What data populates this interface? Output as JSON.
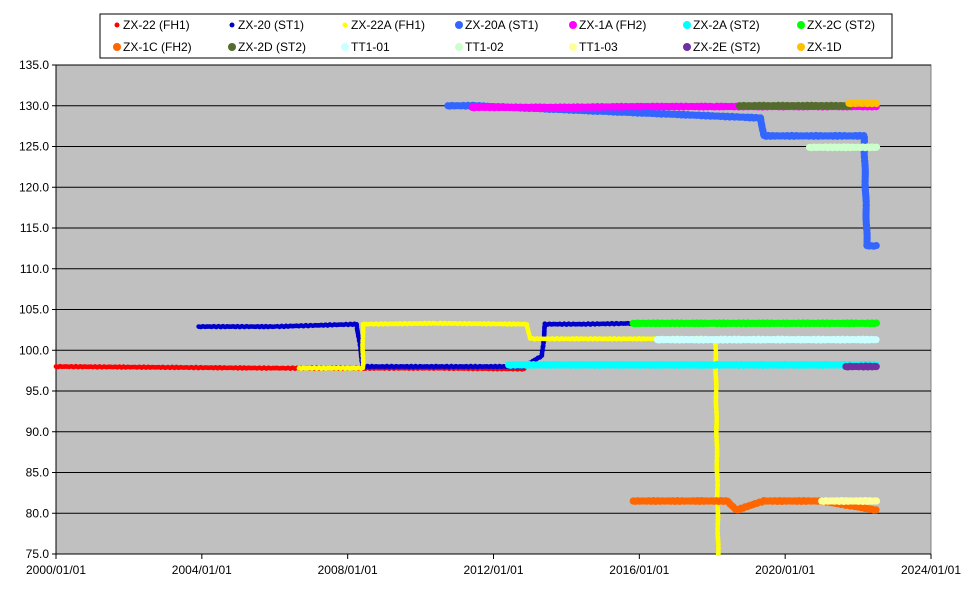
{
  "chart_data": {
    "type": "scatter",
    "title": "",
    "xlabel": "",
    "ylabel": "",
    "xlim": [
      "2000/01/01",
      "2024/01/01"
    ],
    "ylim": [
      75.0,
      135.0
    ],
    "x_ticks": [
      "2000/01/01",
      "2004/01/01",
      "2008/01/01",
      "2012/01/01",
      "2016/01/01",
      "2020/01/01",
      "2024/01/01"
    ],
    "y_ticks": [
      "75.0",
      "80.0",
      "85.0",
      "90.0",
      "95.0",
      "100.0",
      "105.0",
      "110.0",
      "115.0",
      "120.0",
      "125.0",
      "130.0",
      "135.0"
    ],
    "grid": "horizontal",
    "plot_background": "#C0C0C0",
    "legend_position": "top",
    "series": [
      {
        "name": "ZX-22 (FH1)",
        "color": "#FF0000",
        "marker": "small",
        "x": [
          "2000/01/01",
          "2003/01/01",
          "2006/01/01",
          "2008/06/01",
          "2010/06/01",
          "2012/11/01"
        ],
        "y": [
          98.0,
          97.9,
          97.8,
          97.8,
          97.8,
          97.7
        ]
      },
      {
        "name": "ZX-20 (ST1)",
        "color": "#0000CC",
        "marker": "small",
        "x": [
          "2003/12/01",
          "2006/01/01",
          "2008/04/01",
          "2008/06/01",
          "2010/06/01",
          "2012/11/01",
          "2013/05/01",
          "2013/06/01",
          "2014/06/01",
          "2015/12/01"
        ],
        "y": [
          102.9,
          102.9,
          103.2,
          98.0,
          98.0,
          98.0,
          99.3,
          103.2,
          103.2,
          103.3
        ]
      },
      {
        "name": "ZX-22A (FH1)",
        "color": "#FFFF00",
        "marker": "small",
        "x": [
          "2006/09/01",
          "2008/06/01",
          "2008/06/01",
          "2010/06/01",
          "2012/12/01",
          "2013/01/01",
          "2014/06/01",
          "2016/06/01",
          "2018/02/01",
          "2018/03/01"
        ],
        "y": [
          97.8,
          97.8,
          103.2,
          103.3,
          103.2,
          101.4,
          101.4,
          101.4,
          101.4,
          75.0
        ]
      },
      {
        "name": "ZX-20A (ST1)",
        "color": "#3366FF",
        "marker": "large",
        "x": [
          "2010/10/01",
          "2011/06/01",
          "2019/05/01",
          "2019/06/01",
          "2020/06/01",
          "2022/03/01",
          "2022/04/01",
          "2022/07/01"
        ],
        "y": [
          130.0,
          130.0,
          128.5,
          126.3,
          126.3,
          126.3,
          112.8,
          112.8
        ]
      },
      {
        "name": "ZX-1A (FH2)",
        "color": "#FF00FF",
        "marker": "large",
        "x": [
          "2011/06/01",
          "2014/01/01",
          "2016/01/01",
          "2018/01/01",
          "2020/01/01",
          "2022/07/01"
        ],
        "y": [
          129.8,
          129.8,
          129.9,
          129.9,
          129.9,
          129.9
        ]
      },
      {
        "name": "ZX-2A (ST2)",
        "color": "#00FFFF",
        "marker": "large",
        "x": [
          "2012/06/01",
          "2014/01/01",
          "2016/01/01",
          "2018/01/01",
          "2020/01/01",
          "2022/07/01"
        ],
        "y": [
          98.2,
          98.2,
          98.2,
          98.2,
          98.2,
          98.2
        ]
      },
      {
        "name": "ZX-2C (ST2)",
        "color": "#00FF00",
        "marker": "large",
        "x": [
          "2015/11/01",
          "2018/01/01",
          "2020/01/01",
          "2022/07/01"
        ],
        "y": [
          103.3,
          103.3,
          103.3,
          103.3
        ]
      },
      {
        "name": "ZX-1C (FH2)",
        "color": "#FF6600",
        "marker": "large",
        "x": [
          "2015/11/01",
          "2017/06/01",
          "2018/06/01",
          "2018/09/01",
          "2019/06/01",
          "2021/01/01",
          "2022/07/01"
        ],
        "y": [
          81.5,
          81.5,
          81.5,
          80.4,
          81.5,
          81.5,
          80.4
        ]
      },
      {
        "name": "ZX-2D (ST2)",
        "color": "#556B2F",
        "marker": "large",
        "x": [
          "2018/10/01",
          "2020/06/01",
          "2021/10/01"
        ],
        "y": [
          130.0,
          130.0,
          130.0
        ]
      },
      {
        "name": "TT1-01",
        "color": "#CCFFFF",
        "marker": "large",
        "x": [
          "2016/07/01",
          "2018/06/01",
          "2020/06/01",
          "2022/07/01"
        ],
        "y": [
          101.3,
          101.3,
          101.3,
          101.3
        ]
      },
      {
        "name": "TT1-02",
        "color": "#CCFFCC",
        "marker": "large",
        "x": [
          "2020/09/01",
          "2021/06/01",
          "2022/07/01"
        ],
        "y": [
          124.9,
          124.9,
          124.9
        ]
      },
      {
        "name": "TT1-03",
        "color": "#FFFF99",
        "marker": "large",
        "x": [
          "2021/01/01",
          "2022/07/01"
        ],
        "y": [
          81.5,
          81.5
        ]
      },
      {
        "name": "ZX-2E (ST2)",
        "color": "#7030A0",
        "marker": "large",
        "x": [
          "2021/09/01",
          "2022/07/01"
        ],
        "y": [
          98.0,
          98.0
        ]
      },
      {
        "name": "ZX-1D",
        "color": "#FFC000",
        "marker": "large",
        "x": [
          "2021/10/01",
          "2022/07/01"
        ],
        "y": [
          130.3,
          130.3
        ]
      }
    ]
  }
}
